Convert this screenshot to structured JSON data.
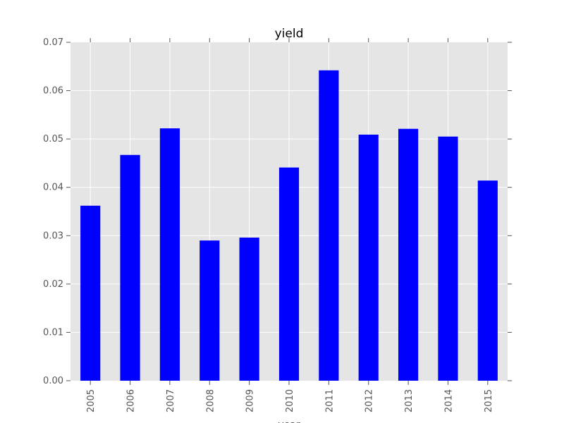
{
  "chart_data": {
    "type": "bar",
    "title": "yield",
    "xlabel": "year",
    "ylabel": "",
    "categories": [
      "2005",
      "2006",
      "2007",
      "2008",
      "2009",
      "2010",
      "2011",
      "2012",
      "2013",
      "2014",
      "2015"
    ],
    "values": [
      0.0362,
      0.0467,
      0.0522,
      0.029,
      0.0296,
      0.0441,
      0.0642,
      0.0509,
      0.0521,
      0.0505,
      0.0414
    ],
    "ylim": [
      0,
      0.07
    ],
    "yticks": [
      "0.00",
      "0.01",
      "0.02",
      "0.03",
      "0.04",
      "0.05",
      "0.06",
      "0.07"
    ],
    "grid": true,
    "legend": "none",
    "colors": {
      "bar": "#0000ff",
      "plot_background": "#e5e5e5",
      "grid": "#ffffff",
      "tick_label": "#555555"
    }
  }
}
